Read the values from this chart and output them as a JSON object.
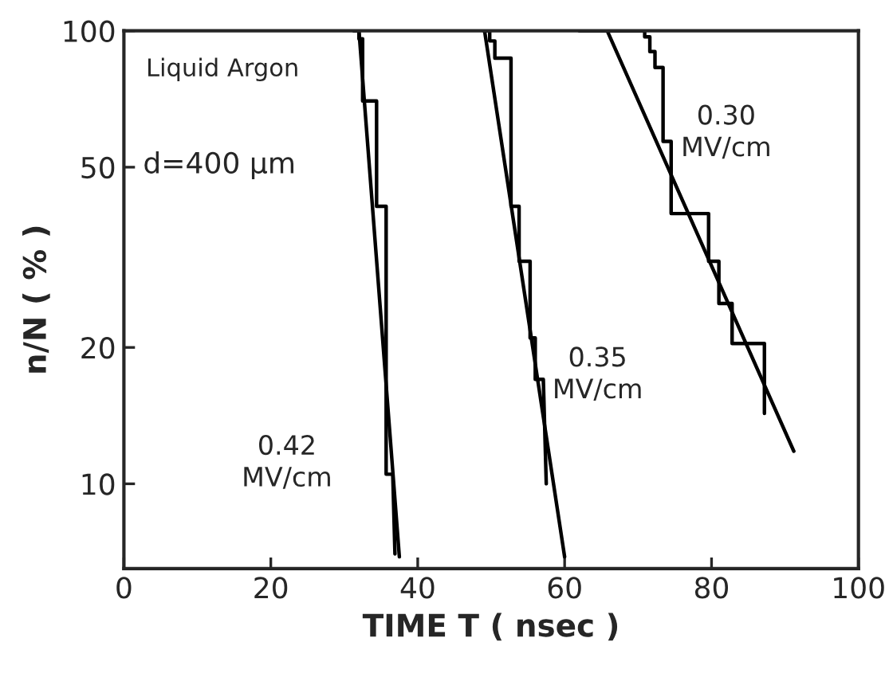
{
  "chart_data": {
    "type": "line",
    "xlabel": "TIME T ( nsec )",
    "ylabel": "n/N ( % )",
    "xlim": [
      0,
      100
    ],
    "xticks": [
      0,
      20,
      40,
      60,
      80,
      100
    ],
    "ylim": [
      6.5,
      100
    ],
    "yticks": [
      10,
      20,
      50,
      100
    ],
    "log": "y",
    "grid": false,
    "legend": false,
    "marker": "none",
    "series": [
      {
        "color": "#000000",
        "x": [
          31.3,
          32.0,
          32.0,
          32.5,
          32.5,
          34.4,
          34.4,
          35.7,
          35.7,
          36.6,
          36.9
        ],
        "values": [
          100,
          100,
          96,
          96,
          70,
          70,
          41,
          41,
          10.5,
          10.5,
          7.0
        ]
      },
      {
        "color": "#000000",
        "x": [
          32.0,
          37.5
        ],
        "values": [
          100,
          6.9
        ]
      },
      {
        "color": "#000000",
        "x": [
          49.0,
          49.8,
          49.8,
          50.5,
          50.5,
          52.7,
          52.7,
          53.8,
          53.8,
          55.3,
          55.3,
          56.0,
          56.0,
          57.1,
          57.5
        ],
        "values": [
          100,
          100,
          95,
          95,
          87,
          87,
          41,
          41,
          31,
          31,
          21,
          21,
          17,
          17,
          10
        ]
      },
      {
        "color": "#000000",
        "x": [
          49.1,
          60.0
        ],
        "values": [
          100,
          6.9
        ]
      },
      {
        "color": "#000000",
        "x": [
          62.0,
          70.9,
          70.9,
          71.6,
          71.6,
          72.3,
          72.3,
          73.4,
          73.4,
          74.5,
          74.5,
          79.6,
          79.6,
          81.0,
          81.0,
          82.8,
          82.8,
          87.2,
          87.2
        ],
        "values": [
          100,
          100,
          97,
          97,
          90,
          90,
          83,
          83,
          57,
          57,
          39.5,
          39.5,
          31,
          31,
          25,
          25,
          20.4,
          20.4,
          14.3
        ]
      },
      {
        "color": "#000000",
        "x": [
          65.8,
          91.2
        ],
        "values": [
          100,
          11.8
        ]
      }
    ],
    "annotations": [
      "Liquid Argon",
      "d=400 µm",
      "0.42\nMV/cm",
      "0.35\nMV/cm",
      "0.30\nMV/cm"
    ]
  }
}
